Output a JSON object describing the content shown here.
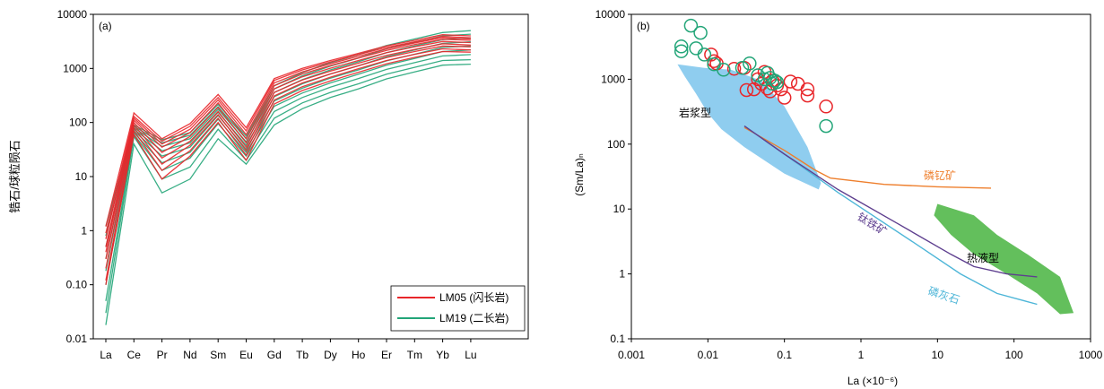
{
  "chart_data": [
    {
      "panel": "(a)",
      "type": "line",
      "ylabel": "锆石/球粒陨石",
      "xlabel": "",
      "yscale": "log",
      "ylim": [
        0.01,
        10000
      ],
      "categories": [
        "La",
        "Ce",
        "Pr",
        "Nd",
        "Sm",
        "Eu",
        "Gd",
        "Tb",
        "Dy",
        "Ho",
        "Er",
        "Tm",
        "Yb",
        "Lu"
      ],
      "yticks": [
        "0.01",
        "0.10",
        "1",
        "10",
        "100",
        "1000",
        "10000"
      ],
      "legend_position": "bottom-right",
      "colors": {
        "LM05": "#e8262a",
        "LM19": "#22a578"
      },
      "series": [
        {
          "name": "LM05 (闪长岩)",
          "group": "LM05",
          "values": [
            1.2,
            150,
            50,
            95,
            330,
            80,
            650,
            1000,
            1400,
            1900,
            2600,
            3300,
            4200,
            4000
          ]
        },
        {
          "name": "",
          "group": "LM05",
          "values": [
            0.9,
            130,
            45,
            85,
            290,
            70,
            600,
            940,
            1320,
            1800,
            2450,
            3100,
            3900,
            3700
          ]
        },
        {
          "name": "",
          "group": "LM05",
          "values": [
            0.7,
            120,
            40,
            75,
            260,
            60,
            540,
            860,
            1220,
            1680,
            2300,
            2950,
            3700,
            3500
          ]
        },
        {
          "name": "",
          "group": "LM05",
          "values": [
            0.5,
            110,
            35,
            65,
            230,
            50,
            480,
            790,
            1130,
            1560,
            2150,
            2750,
            3450,
            3300
          ]
        },
        {
          "name": "",
          "group": "LM05",
          "values": [
            0.4,
            100,
            28,
            55,
            190,
            42,
            420,
            700,
            1010,
            1400,
            1950,
            2500,
            3150,
            3000
          ]
        },
        {
          "name": "",
          "group": "LM05",
          "values": [
            0.3,
            90,
            22,
            45,
            160,
            35,
            360,
            610,
            890,
            1250,
            1750,
            2250,
            2850,
            2700
          ]
        },
        {
          "name": "",
          "group": "LM05",
          "values": [
            0.2,
            80,
            17,
            38,
            140,
            30,
            310,
            540,
            790,
            1120,
            1580,
            2050,
            2600,
            2500
          ]
        },
        {
          "name": "",
          "group": "LM05",
          "values": [
            0.12,
            70,
            13,
            30,
            120,
            25,
            260,
            460,
            690,
            990,
            1400,
            1820,
            2300,
            2200
          ]
        },
        {
          "name": "",
          "group": "LM05",
          "values": [
            0.1,
            60,
            9,
            24,
            100,
            20,
            220,
            390,
            590,
            850,
            1220,
            1600,
            2050,
            2000
          ]
        },
        {
          "name": "LM19 (二长岩)",
          "group": "LM19",
          "values": [
            0.018,
            40,
            5,
            9,
            50,
            17,
            90,
            180,
            290,
            420,
            640,
            860,
            1150,
            1200
          ]
        },
        {
          "name": "",
          "group": "LM19",
          "values": [
            0.03,
            55,
            9,
            15,
            75,
            20,
            120,
            230,
            360,
            520,
            780,
            1050,
            1400,
            1450
          ]
        },
        {
          "name": "",
          "group": "LM19",
          "values": [
            0.05,
            60,
            13,
            22,
            95,
            24,
            160,
            290,
            450,
            650,
            960,
            1280,
            1700,
            1800
          ]
        },
        {
          "name": "",
          "group": "LM19",
          "values": [
            0.1,
            65,
            18,
            28,
            115,
            28,
            200,
            350,
            540,
            780,
            1150,
            1530,
            2050,
            2200
          ]
        },
        {
          "name": "",
          "group": "LM19",
          "values": [
            0.18,
            70,
            24,
            35,
            135,
            32,
            250,
            430,
            660,
            940,
            1380,
            1830,
            2450,
            2600
          ]
        },
        {
          "name": "",
          "group": "LM19",
          "values": [
            0.3,
            75,
            30,
            42,
            155,
            38,
            300,
            520,
            790,
            1120,
            1650,
            2200,
            2900,
            3100
          ]
        },
        {
          "name": "",
          "group": "LM19",
          "values": [
            0.5,
            80,
            36,
            50,
            175,
            44,
            360,
            620,
            940,
            1330,
            1950,
            2600,
            3400,
            3700
          ]
        },
        {
          "name": "",
          "group": "LM19",
          "values": [
            0.8,
            85,
            42,
            58,
            195,
            50,
            420,
            730,
            1100,
            1560,
            2300,
            3050,
            4000,
            4300
          ]
        },
        {
          "name": "",
          "group": "LM19",
          "values": [
            1.2,
            90,
            48,
            65,
            215,
            56,
            480,
            840,
            1280,
            1800,
            2650,
            3500,
            4600,
            5000
          ]
        }
      ]
    },
    {
      "panel": "(b)",
      "type": "scatter",
      "xlabel": "La (×10⁻⁶)",
      "ylabel": "(Sm/La)ₙ",
      "xscale": "log",
      "yscale": "log",
      "xlim": [
        0.001,
        1000
      ],
      "ylim": [
        0.1,
        10000
      ],
      "xticks": [
        "0.001",
        "0.01",
        "0.1",
        "1",
        "10",
        "100",
        "1000"
      ],
      "yticks": [
        "0.1",
        "1",
        "10",
        "100",
        "1000",
        "10000"
      ],
      "colors": {
        "LM05": "#e8262a",
        "LM19": "#22a578",
        "magmatic_field": "#8fcdef",
        "hydrothermal_field": "#63bf5c",
        "monazite": "#ee7f2d",
        "ilmenite": "#5e3f8f",
        "apatite": "#4eb6d8"
      },
      "series": [
        {
          "name": "",
          "group": "LM05",
          "marker": "open-circle",
          "points": [
            [
              0.011,
              2400
            ],
            [
              0.012,
              1900
            ],
            [
              0.013,
              1750
            ],
            [
              0.022,
              1450
            ],
            [
              0.03,
              1500
            ],
            [
              0.032,
              680
            ],
            [
              0.04,
              700
            ],
            [
              0.045,
              1000
            ],
            [
              0.05,
              850
            ],
            [
              0.055,
              1300
            ],
            [
              0.06,
              720
            ],
            [
              0.065,
              650
            ],
            [
              0.07,
              950
            ],
            [
              0.08,
              800
            ],
            [
              0.09,
              700
            ],
            [
              0.1,
              520
            ],
            [
              0.12,
              920
            ],
            [
              0.15,
              850
            ],
            [
              0.2,
              560
            ],
            [
              0.2,
              700
            ],
            [
              0.35,
              380
            ]
          ]
        },
        {
          "name": "",
          "group": "LM19",
          "marker": "open-circle",
          "points": [
            [
              0.0045,
              2700
            ],
            [
              0.0045,
              3200
            ],
            [
              0.006,
              6700
            ],
            [
              0.007,
              3000
            ],
            [
              0.008,
              5200
            ],
            [
              0.009,
              2400
            ],
            [
              0.012,
              1700
            ],
            [
              0.016,
              1400
            ],
            [
              0.028,
              1500
            ],
            [
              0.035,
              1750
            ],
            [
              0.045,
              1150
            ],
            [
              0.055,
              1000
            ],
            [
              0.06,
              1250
            ],
            [
              0.065,
              1050
            ],
            [
              0.07,
              850
            ],
            [
              0.075,
              950
            ],
            [
              0.08,
              900
            ],
            [
              0.35,
              190
            ]
          ]
        }
      ],
      "curves": [
        {
          "name": "磷钇矿",
          "points": [
            [
              0.03,
              180
            ],
            [
              0.1,
              80
            ],
            [
              0.25,
              40
            ],
            [
              0.4,
              30
            ],
            [
              2,
              24
            ],
            [
              10,
              22
            ],
            [
              50,
              21
            ]
          ]
        },
        {
          "name": "钛铁矿",
          "points": [
            [
              0.03,
              190
            ],
            [
              0.1,
              70
            ],
            [
              0.5,
              20
            ],
            [
              3,
              6
            ],
            [
              15,
              2
            ],
            [
              30,
              1.3
            ],
            [
              80,
              1.0
            ],
            [
              200,
              0.9
            ]
          ]
        },
        {
          "name": "磷灰石",
          "points": [
            [
              0.03,
              190
            ],
            [
              0.1,
              70
            ],
            [
              0.5,
              18
            ],
            [
              5,
              3
            ],
            [
              20,
              1
            ],
            [
              60,
              0.5
            ],
            [
              200,
              0.34
            ]
          ]
        }
      ],
      "fields": [
        {
          "name": "岩浆型",
          "polygon": [
            [
              0.004,
              1700
            ],
            [
              0.009,
              1500
            ],
            [
              0.02,
              1400
            ],
            [
              0.05,
              950
            ],
            [
              0.1,
              380
            ],
            [
              0.2,
              90
            ],
            [
              0.3,
              25
            ],
            [
              0.28,
              20
            ],
            [
              0.1,
              35
            ],
            [
              0.03,
              90
            ],
            [
              0.015,
              170
            ],
            [
              0.01,
              300
            ],
            [
              0.007,
              600
            ],
            [
              0.005,
              1100
            ]
          ]
        },
        {
          "name": "热液型",
          "polygon": [
            [
              10,
              12
            ],
            [
              30,
              8
            ],
            [
              60,
              4
            ],
            [
              150,
              2
            ],
            [
              400,
              0.9
            ],
            [
              600,
              0.25
            ],
            [
              400,
              0.24
            ],
            [
              200,
              0.5
            ],
            [
              80,
              1
            ],
            [
              30,
              2
            ],
            [
              15,
              4
            ],
            [
              9,
              8
            ]
          ]
        }
      ],
      "annotations": [
        "岩浆型",
        "磷钇矿",
        "钛铁矿",
        "热液型",
        "磷灰石"
      ]
    }
  ],
  "labels": {
    "panel_a": "(a)",
    "panel_b": "(b)",
    "legend_lm05": "LM05 (闪长岩)",
    "legend_lm19": "LM19 (二长岩)",
    "field_magmatic": "岩浆型",
    "curve_monazite": "磷钇矿",
    "curve_ilmenite": "钛铁矿",
    "field_hydrothermal": "热液型",
    "curve_apatite": "磷灰石"
  }
}
